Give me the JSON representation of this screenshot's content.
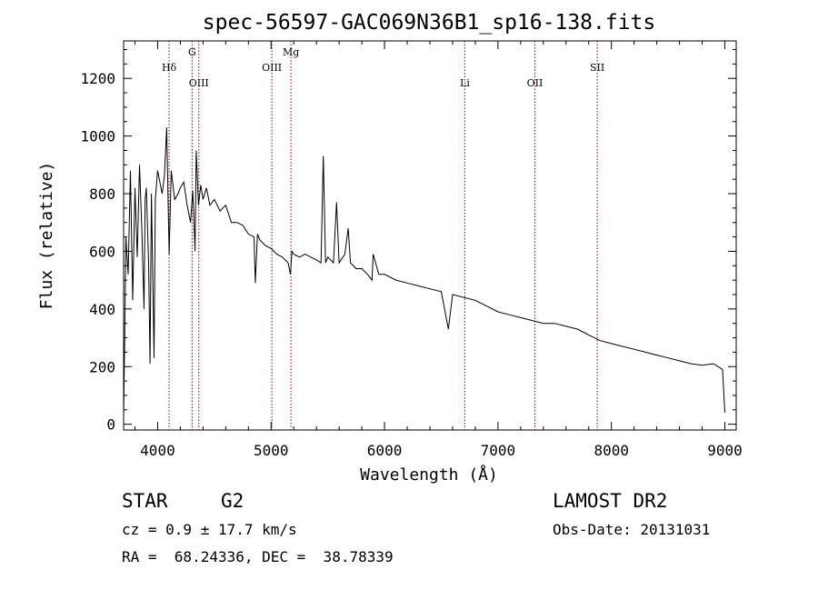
{
  "title": "spec-56597-GAC069N36B1_sp16-138.fits",
  "xlabel": "Wavelength (Å)",
  "ylabel": "Flux (relative)",
  "info": {
    "class": "STAR",
    "subclass": "G2",
    "survey": "LAMOST DR2",
    "cz": "cz = 0.9 ± 17.7 km/s",
    "obs_date": "Obs-Date: 20131031",
    "coords": "RA =  68.24336, DEC =  38.78339"
  },
  "colors": {
    "spectrum": "#000000",
    "lines": "#aa0000",
    "axes": "#000000",
    "background": "#ffffff"
  },
  "chart_data": {
    "type": "line",
    "title": "spec-56597-GAC069N36B1_sp16-138.fits",
    "xlabel": "Wavelength (Å)",
    "ylabel": "Flux (relative)",
    "xlim": [
      3700,
      9100
    ],
    "ylim": [
      -20,
      1330
    ],
    "xticks": [
      4000,
      5000,
      6000,
      7000,
      8000,
      9000
    ],
    "yticks": [
      0,
      200,
      400,
      600,
      800,
      1000,
      1200
    ],
    "grid": false,
    "series": [
      {
        "x": [
          3700,
          3710,
          3720,
          3740,
          3760,
          3780,
          3800,
          3820,
          3840,
          3860,
          3880,
          3890,
          3900,
          3920,
          3933,
          3945,
          3968,
          3980,
          4000,
          4020,
          4040,
          4060,
          4080,
          4101,
          4120,
          4150,
          4180,
          4200,
          4230,
          4260,
          4290,
          4310,
          4330,
          4340,
          4360,
          4380,
          4400,
          4430,
          4460,
          4500,
          4550,
          4600,
          4650,
          4700,
          4750,
          4800,
          4850,
          4861,
          4880,
          4900,
          4950,
          5000,
          5050,
          5100,
          5150,
          5170,
          5184,
          5200,
          5250,
          5300,
          5350,
          5400,
          5440,
          5460,
          5480,
          5500,
          5550,
          5577,
          5600,
          5650,
          5680,
          5700,
          5750,
          5800,
          5850,
          5890,
          5900,
          5950,
          6000,
          6100,
          6200,
          6300,
          6400,
          6500,
          6563,
          6600,
          6700,
          6800,
          6900,
          7000,
          7100,
          7200,
          7300,
          7400,
          7500,
          7600,
          7700,
          7800,
          7900,
          8000,
          8100,
          8200,
          8300,
          8400,
          8500,
          8600,
          8700,
          8800,
          8900,
          8980,
          9000
        ],
        "y": [
          30,
          300,
          650,
          520,
          880,
          430,
          820,
          580,
          900,
          680,
          400,
          780,
          820,
          560,
          210,
          800,
          230,
          780,
          880,
          840,
          800,
          860,
          1030,
          590,
          880,
          780,
          800,
          820,
          840,
          760,
          700,
          810,
          600,
          950,
          760,
          830,
          780,
          820,
          760,
          780,
          740,
          760,
          700,
          700,
          690,
          660,
          650,
          490,
          660,
          640,
          620,
          610,
          590,
          580,
          560,
          520,
          600,
          590,
          580,
          590,
          580,
          570,
          560,
          930,
          560,
          580,
          560,
          770,
          560,
          590,
          680,
          560,
          540,
          540,
          520,
          500,
          590,
          520,
          520,
          500,
          490,
          480,
          470,
          460,
          330,
          450,
          440,
          430,
          410,
          390,
          380,
          370,
          360,
          350,
          350,
          340,
          330,
          310,
          290,
          280,
          270,
          260,
          250,
          240,
          230,
          220,
          210,
          205,
          210,
          190,
          40
        ]
      }
    ],
    "lines": [
      {
        "name": "Hδ",
        "x": 4101,
        "label_row": 1
      },
      {
        "name": "G",
        "x": 4304,
        "label_row": 0
      },
      {
        "name": "OIII",
        "x": 4363,
        "label_row": 2
      },
      {
        "name": "OIII",
        "x": 5007,
        "label_row": 1
      },
      {
        "name": "Mg",
        "x": 5175,
        "label_row": 0
      },
      {
        "name": "Li",
        "x": 6708,
        "label_row": 2
      },
      {
        "name": "OII",
        "x": 7325,
        "label_row": 2
      },
      {
        "name": "SII",
        "x": 7875,
        "label_row": 1
      }
    ]
  }
}
